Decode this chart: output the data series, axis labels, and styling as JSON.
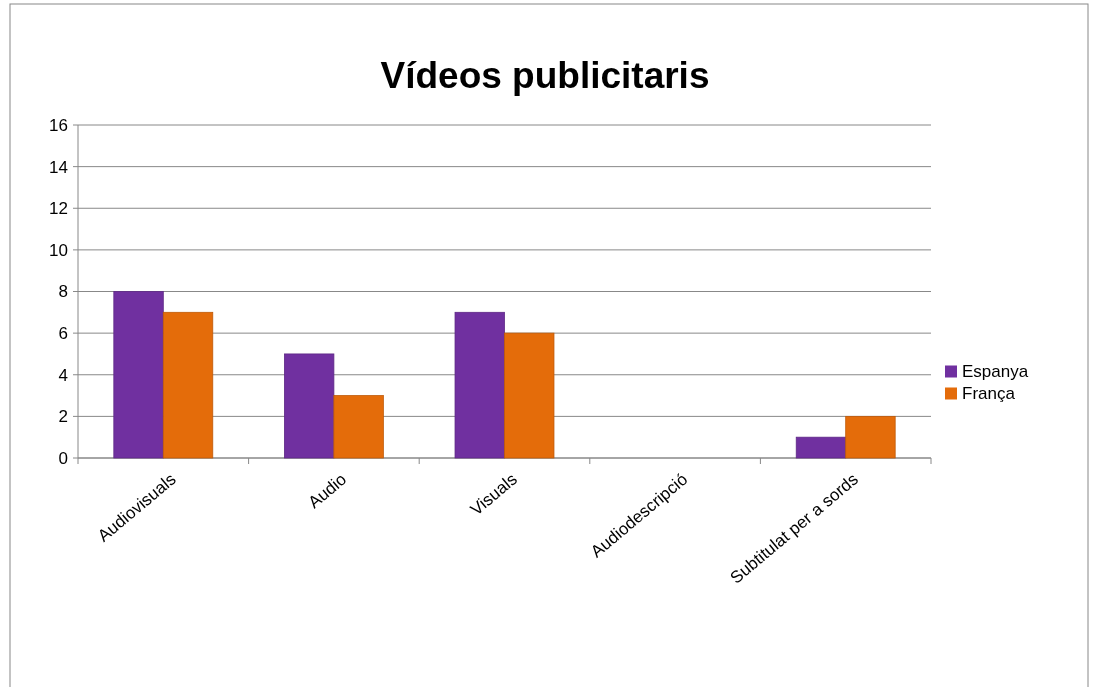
{
  "chart_data": {
    "type": "bar",
    "title": "Vídeos publicitaris",
    "categories": [
      "Audiovisuals",
      "Audio",
      "Visuals",
      "Audiodescripció",
      "Subtitulat per a sords"
    ],
    "series": [
      {
        "name": "Espanya",
        "color": "#7030a0",
        "values": [
          8,
          5,
          7,
          0,
          1
        ]
      },
      {
        "name": "França",
        "color": "#e46c0a",
        "values": [
          7,
          3,
          6,
          0,
          2
        ]
      }
    ],
    "ylim": [
      0,
      16
    ],
    "yticks": [
      0,
      2,
      4,
      6,
      8,
      10,
      12,
      14,
      16
    ],
    "grid": "y",
    "legend": "right"
  }
}
